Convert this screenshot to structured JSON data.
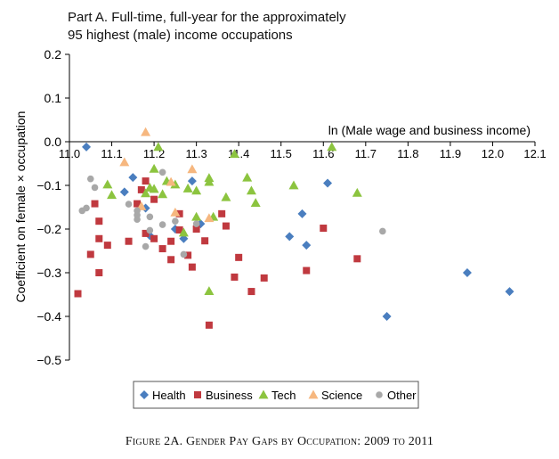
{
  "chart_data": {
    "type": "scatter",
    "title": "Part A. Full-time, full-year for the approximately",
    "title_line2": "95 highest (male) income occupations",
    "xlabel": "ln (Male wage and business income)",
    "ylabel": "Coefficient on female × occupation",
    "xlim": [
      11.0,
      12.1
    ],
    "ylim": [
      -0.5,
      0.2
    ],
    "x_ticks": [
      "11.0",
      "11.1",
      "11.2",
      "11.3",
      "11.4",
      "11.5",
      "11.6",
      "11.7",
      "11.8",
      "11.9",
      "12.0",
      "12.1"
    ],
    "x_tick_values": [
      11.0,
      11.1,
      11.2,
      11.3,
      11.4,
      11.5,
      11.6,
      11.7,
      11.8,
      11.9,
      12.0,
      12.1
    ],
    "y_ticks": [
      "0.2",
      "0.1",
      "0.0",
      "−0.1",
      "−0.2",
      "−0.3",
      "−0.4",
      "−0.5"
    ],
    "y_tick_values": [
      0.2,
      0.1,
      0.0,
      -0.1,
      -0.2,
      -0.3,
      -0.4,
      -0.5
    ],
    "grid": false,
    "legend_position": "bottom",
    "series": [
      {
        "name": "Health",
        "marker": "diamond",
        "color": "#4a7ebf",
        "points": [
          [
            11.04,
            -0.012
          ],
          [
            11.13,
            -0.115
          ],
          [
            11.15,
            -0.082
          ],
          [
            11.18,
            -0.152
          ],
          [
            11.19,
            -0.215
          ],
          [
            11.25,
            -0.2
          ],
          [
            11.27,
            -0.222
          ],
          [
            11.29,
            -0.09
          ],
          [
            11.31,
            -0.188
          ],
          [
            11.52,
            -0.217
          ],
          [
            11.55,
            -0.165
          ],
          [
            11.56,
            -0.237
          ],
          [
            11.61,
            -0.095
          ],
          [
            11.75,
            -0.4
          ],
          [
            11.94,
            -0.3
          ],
          [
            12.04,
            -0.343
          ]
        ]
      },
      {
        "name": "Business",
        "marker": "square",
        "color": "#c0393f",
        "points": [
          [
            11.02,
            -0.348
          ],
          [
            11.05,
            -0.258
          ],
          [
            11.06,
            -0.142
          ],
          [
            11.07,
            -0.182
          ],
          [
            11.07,
            -0.222
          ],
          [
            11.07,
            -0.3
          ],
          [
            11.09,
            -0.237
          ],
          [
            11.14,
            -0.228
          ],
          [
            11.16,
            -0.142
          ],
          [
            11.17,
            -0.11
          ],
          [
            11.18,
            -0.21
          ],
          [
            11.18,
            -0.09
          ],
          [
            11.2,
            -0.132
          ],
          [
            11.2,
            -0.222
          ],
          [
            11.22,
            -0.245
          ],
          [
            11.24,
            -0.228
          ],
          [
            11.24,
            -0.27
          ],
          [
            11.26,
            -0.202
          ],
          [
            11.26,
            -0.165
          ],
          [
            11.28,
            -0.26
          ],
          [
            11.29,
            -0.287
          ],
          [
            11.3,
            -0.2
          ],
          [
            11.32,
            -0.227
          ],
          [
            11.33,
            -0.42
          ],
          [
            11.36,
            -0.165
          ],
          [
            11.37,
            -0.193
          ],
          [
            11.39,
            -0.31
          ],
          [
            11.4,
            -0.265
          ],
          [
            11.43,
            -0.343
          ],
          [
            11.46,
            -0.312
          ],
          [
            11.56,
            -0.295
          ],
          [
            11.6,
            -0.198
          ],
          [
            11.68,
            -0.268
          ]
        ]
      },
      {
        "name": "Tech",
        "marker": "triangle",
        "color": "#8cc43f",
        "points": [
          [
            11.09,
            -0.098
          ],
          [
            11.1,
            -0.122
          ],
          [
            11.18,
            -0.118
          ],
          [
            11.19,
            -0.105
          ],
          [
            11.2,
            -0.062
          ],
          [
            11.2,
            -0.108
          ],
          [
            11.21,
            -0.012
          ],
          [
            11.22,
            -0.12
          ],
          [
            11.23,
            -0.09
          ],
          [
            11.25,
            -0.098
          ],
          [
            11.27,
            -0.208
          ],
          [
            11.28,
            -0.107
          ],
          [
            11.3,
            -0.172
          ],
          [
            11.3,
            -0.112
          ],
          [
            11.33,
            -0.083
          ],
          [
            11.33,
            -0.092
          ],
          [
            11.33,
            -0.342
          ],
          [
            11.34,
            -0.172
          ],
          [
            11.37,
            -0.127
          ],
          [
            11.39,
            -0.028
          ],
          [
            11.42,
            -0.082
          ],
          [
            11.43,
            -0.112
          ],
          [
            11.44,
            -0.14
          ],
          [
            11.53,
            -0.1
          ],
          [
            11.62,
            -0.012
          ],
          [
            11.68,
            -0.117
          ]
        ]
      },
      {
        "name": "Science",
        "marker": "triangle",
        "color": "#f6b77f",
        "points": [
          [
            11.13,
            -0.047
          ],
          [
            11.17,
            -0.148
          ],
          [
            11.18,
            0.022
          ],
          [
            11.24,
            -0.092
          ],
          [
            11.25,
            -0.162
          ],
          [
            11.29,
            -0.063
          ],
          [
            11.33,
            -0.175
          ]
        ]
      },
      {
        "name": "Other",
        "marker": "circle",
        "color": "#a8a8a8",
        "points": [
          [
            11.03,
            -0.158
          ],
          [
            11.04,
            -0.152
          ],
          [
            11.05,
            -0.085
          ],
          [
            11.06,
            -0.105
          ],
          [
            11.14,
            -0.143
          ],
          [
            11.16,
            -0.158
          ],
          [
            11.16,
            -0.168
          ],
          [
            11.16,
            -0.178
          ],
          [
            11.18,
            -0.24
          ],
          [
            11.19,
            -0.172
          ],
          [
            11.19,
            -0.203
          ],
          [
            11.22,
            -0.07
          ],
          [
            11.22,
            -0.19
          ],
          [
            11.25,
            -0.182
          ],
          [
            11.27,
            -0.258
          ],
          [
            11.3,
            -0.188
          ],
          [
            11.74,
            -0.205
          ]
        ]
      }
    ]
  },
  "caption": "Figure 2A. Gender Pay Gaps by Occupation: 2009 to 2011"
}
